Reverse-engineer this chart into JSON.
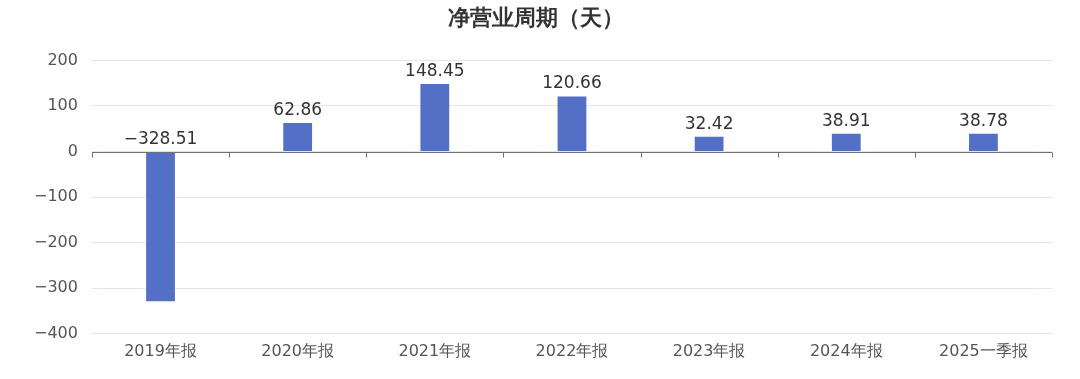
{
  "chart_data": {
    "type": "bar",
    "title": "净营业周期（天）",
    "categories": [
      "2019年报",
      "2020年报",
      "2021年报",
      "2022年报",
      "2023年报",
      "2024年报",
      "2025一季报"
    ],
    "values": [
      -328.51,
      62.86,
      148.45,
      120.66,
      32.42,
      38.91,
      38.78
    ],
    "color": "#5470c6",
    "ylim": [
      -400,
      200
    ],
    "yticks": [
      -400,
      -300,
      -200,
      -100,
      0,
      100,
      200
    ],
    "grid": "y",
    "data_labels": true,
    "legend": false
  }
}
